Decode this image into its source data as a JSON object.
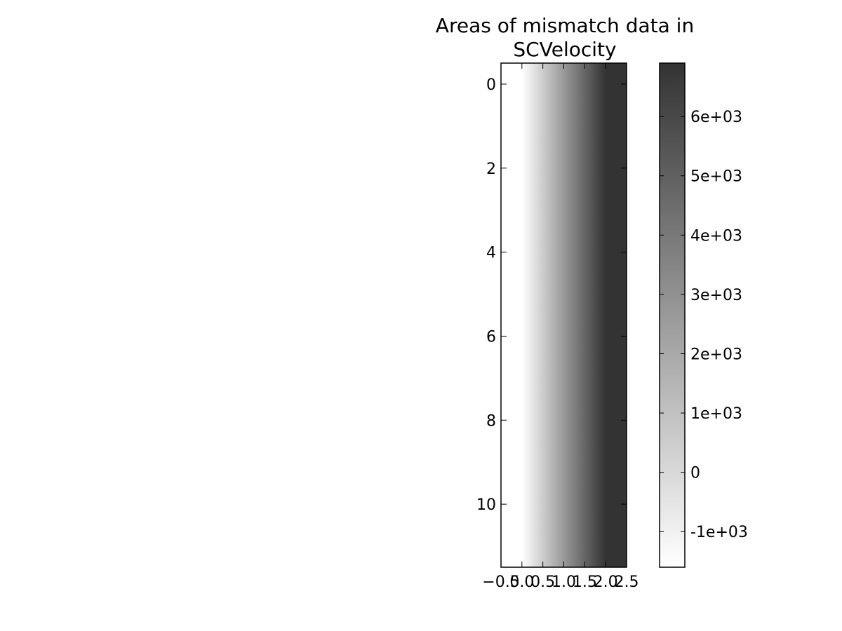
{
  "chart_data": {
    "type": "heatmap",
    "title_lines": [
      "Areas of mismatch data in",
      "SCVelocity"
    ],
    "xlabel": "",
    "ylabel": "",
    "x_ticks": [
      -0.5,
      0.0,
      0.5,
      1.0,
      1.5,
      2.0,
      2.5
    ],
    "x_tick_labels": [
      "−0.5",
      "0.0",
      "0.5",
      "1.0",
      "1.5",
      "2.0",
      "2.5"
    ],
    "x_range": [
      -0.5,
      2.5
    ],
    "y_ticks": [
      0,
      2,
      4,
      6,
      8,
      10
    ],
    "y_tick_labels": [
      "0",
      "2",
      "4",
      "6",
      "8",
      "10"
    ],
    "y_range": [
      -0.5,
      11.5
    ],
    "y_inverted": true,
    "colormap": "gray_r",
    "value_range": [
      -1600,
      6900
    ],
    "columns_x": [
      0.0,
      1.0,
      2.0
    ],
    "rows": 12,
    "column_values": [
      -1600,
      2650,
      6900
    ],
    "interpolation": "smooth",
    "colorbar": {
      "ticks": [
        -1000,
        0,
        1000,
        2000,
        3000,
        4000,
        5000,
        6000
      ],
      "tick_labels": [
        "-1e+03",
        "0",
        "1e+03",
        "2e+03",
        "3e+03",
        "4e+03",
        "5e+03",
        "6e+03"
      ]
    },
    "color_low": "#ffffff",
    "color_high": "#333333"
  }
}
